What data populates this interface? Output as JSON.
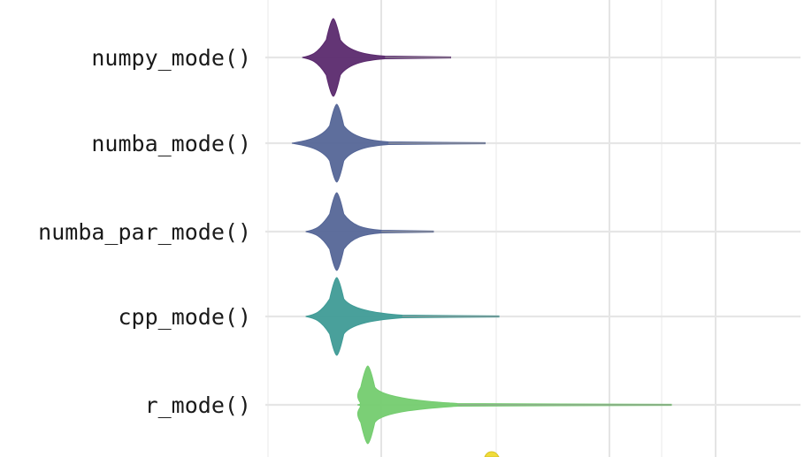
{
  "chart_data": {
    "type": "violin",
    "title": "",
    "xlabel": "",
    "ylabel": "",
    "grid": true,
    "legend": "none",
    "categories": [
      "numpy_mode()",
      "numba_mode()",
      "numba_par_mode()",
      "cpp_mode()",
      "r_mode()"
    ],
    "series": [
      {
        "label": "numpy_mode()",
        "color": "#5b2a6e",
        "peak": 0.6,
        "body": [
          0.15,
          1.35
        ],
        "tail_end": 2.3
      },
      {
        "label": "numba_mode()",
        "color": "#556697",
        "peak": 0.65,
        "body": [
          0.0,
          1.4
        ],
        "tail_end": 2.8
      },
      {
        "label": "numba_par_mode()",
        "color": "#556697",
        "peak": 0.65,
        "body": [
          0.2,
          1.3
        ],
        "tail_end": 2.05
      },
      {
        "label": "cpp_mode()",
        "color": "#3f9b96",
        "peak": 0.65,
        "body": [
          0.2,
          1.6
        ],
        "tail_end": 3.0
      },
      {
        "label": "r_mode()",
        "color": "#74cc6f",
        "peak": 1.1,
        "body": [
          0.95,
          2.4
        ],
        "tail_end": 5.5
      }
    ]
  }
}
